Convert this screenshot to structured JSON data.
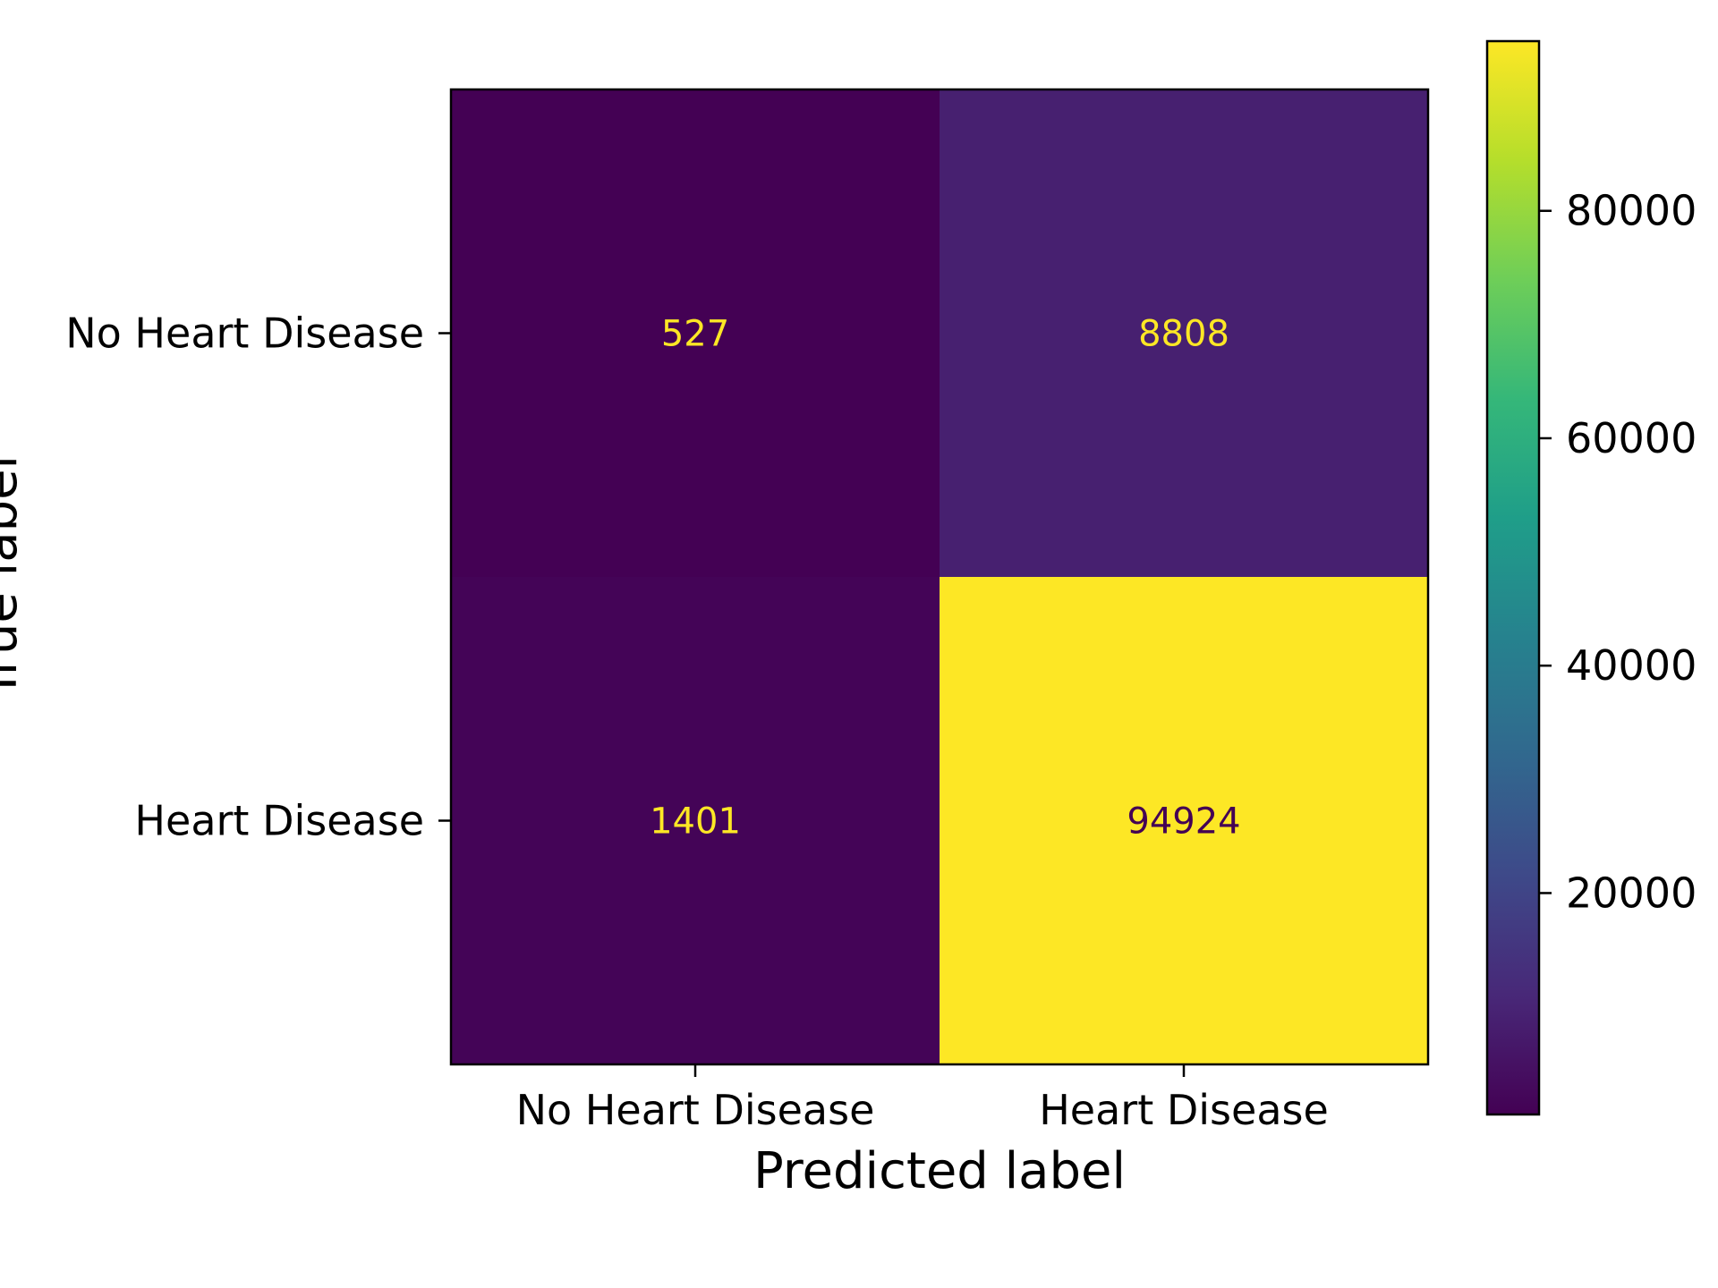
{
  "chart_data": {
    "type": "heatmap",
    "title": "",
    "xlabel": "Predicted label",
    "ylabel": "True label",
    "x_categories": [
      "No Heart Disease",
      "Heart Disease"
    ],
    "y_categories": [
      "No Heart Disease",
      "Heart Disease"
    ],
    "values": [
      [
        527,
        8808
      ],
      [
        1401,
        94924
      ]
    ],
    "colormap": "viridis",
    "colorbar": {
      "range": [
        527,
        94924
      ],
      "ticks": [
        20000,
        40000,
        60000,
        80000
      ],
      "tick_labels": [
        "20000",
        "40000",
        "60000",
        "80000"
      ]
    },
    "cell_text_colors": {
      "light": "#fde725",
      "dark": "#440154"
    },
    "legend": "colorbar-right",
    "grid": false
  }
}
